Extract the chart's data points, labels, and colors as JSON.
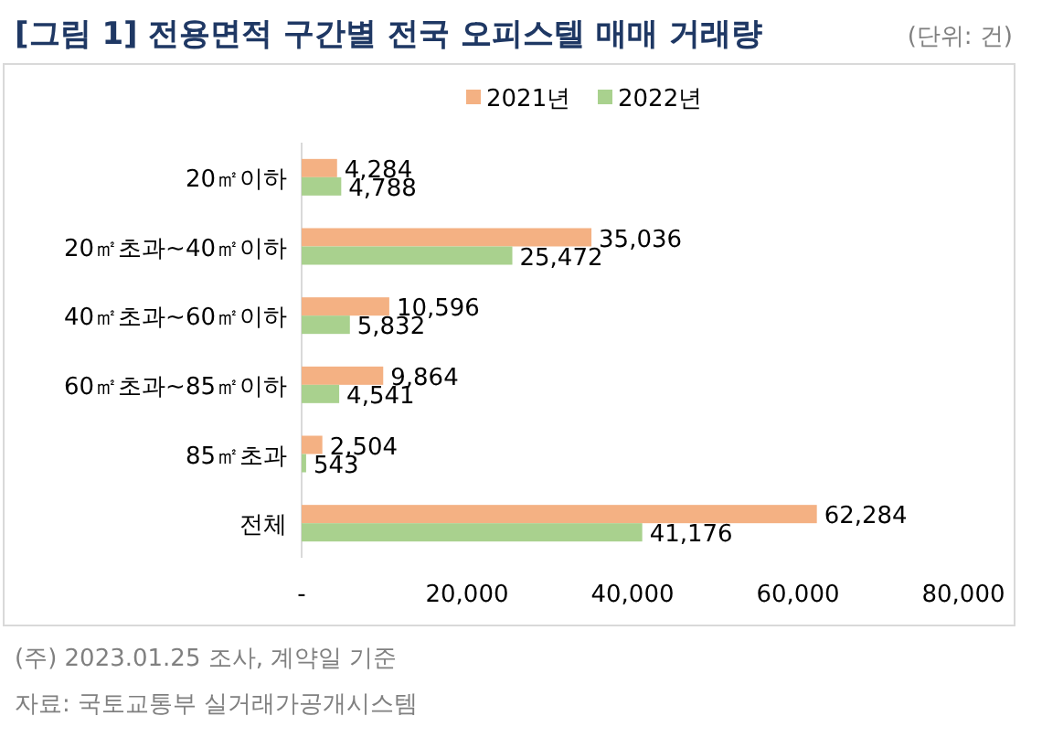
{
  "chart_data": {
    "type": "bar",
    "orientation": "horizontal",
    "title": "[그림 1] 전용면적 구간별 전국 오피스텔 매매 거래량",
    "annotations": [
      "(단위: 건)",
      "(주) 2023.01.25 조사, 계약일 기준",
      "자료: 국토교통부 실거래가공개시스템"
    ],
    "categories": [
      "20㎡이하",
      "20㎡초과~40㎡이하",
      "40㎡초과~60㎡이하",
      "60㎡초과~85㎡이하",
      "85㎡초과",
      "전체"
    ],
    "series": [
      {
        "name": "2021년",
        "color": "#f4b183",
        "values": [
          4284,
          35036,
          10596,
          9864,
          2504,
          62284
        ],
        "value_labels": [
          "4,284",
          "35,036",
          "10,596",
          "9,864",
          "2,504",
          "62,284"
        ]
      },
      {
        "name": "2022년",
        "color": "#a9d18e",
        "values": [
          4788,
          25472,
          5832,
          4541,
          543,
          41176
        ],
        "value_labels": [
          "4,788",
          "25,472",
          "5,832",
          "4,541",
          "543",
          "41,176"
        ]
      }
    ],
    "xlim": [
      0,
      80000
    ],
    "xticks": [
      {
        "value": 0,
        "label": "-"
      },
      {
        "value": 20000,
        "label": "20,000"
      },
      {
        "value": 40000,
        "label": "40,000"
      },
      {
        "value": 60000,
        "label": "60,000"
      },
      {
        "value": 80000,
        "label": "80,000"
      }
    ],
    "grid": false,
    "legend": "top"
  }
}
